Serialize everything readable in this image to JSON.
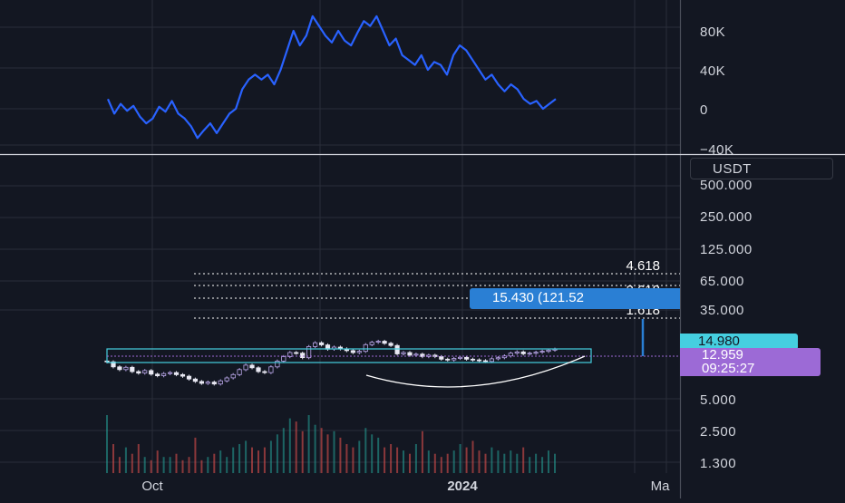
{
  "chart_data": [
    {
      "type": "line",
      "pane": "indicator",
      "color": "#2962ff",
      "y_ticks": [
        "80K",
        "40K",
        "0",
        "−40K"
      ],
      "ylim": [
        -40000,
        100000
      ],
      "series": [
        {
          "values": [
            10000,
            -5000,
            5000,
            -2000,
            3000,
            -8000,
            -15000,
            -10000,
            2000,
            -3000,
            8000,
            -5000,
            -10000,
            -18000,
            -30000,
            -22000,
            -15000,
            -25000,
            -15000,
            -5000,
            0,
            20000,
            30000,
            35000,
            30000,
            35000,
            25000,
            40000,
            60000,
            80000,
            65000,
            75000,
            95000,
            85000,
            75000,
            68000,
            80000,
            70000,
            65000,
            78000,
            90000,
            85000,
            95000,
            80000,
            65000,
            72000,
            55000,
            50000,
            45000,
            55000,
            40000,
            48000,
            45000,
            35000,
            55000,
            65000,
            60000,
            50000,
            40000,
            30000,
            35000,
            25000,
            18000,
            25000,
            20000,
            10000,
            5000,
            8000,
            0,
            5000,
            10000
          ]
        }
      ]
    },
    {
      "type": "candlestick",
      "pane": "price",
      "scale": "log",
      "currency": "USDT",
      "y_ticks": [
        "500.000",
        "250.000",
        "125.000",
        "65.000",
        "35.000",
        "14.980",
        "5.000",
        "2.500",
        "1.300"
      ],
      "x_ticks": [
        {
          "label": "Oct",
          "bold": false
        },
        {
          "label": "2024",
          "bold": true
        },
        {
          "label": "Ma",
          "bold": false
        }
      ],
      "close": [
        11.2,
        10.0,
        9.4,
        9.9,
        9.0,
        8.7,
        9.2,
        8.5,
        8.2,
        8.6,
        8.8,
        8.4,
        8.1,
        7.6,
        7.2,
        6.9,
        7.1,
        6.8,
        7.3,
        7.8,
        8.4,
        9.4,
        10.4,
        9.8,
        9.0,
        8.8,
        10.0,
        11.4,
        12.6,
        13.8,
        13.6,
        12.3,
        15.8,
        17.2,
        16.4,
        14.9,
        15.6,
        15.0,
        14.4,
        13.8,
        14.2,
        16.5,
        17.4,
        17.8,
        17.0,
        16.2,
        13.4,
        13.8,
        13.0,
        13.3,
        12.6,
        13.0,
        12.6,
        11.9,
        11.7,
        12.1,
        12.4,
        11.9,
        11.7,
        11.5,
        11.3,
        12.0,
        12.3,
        12.8,
        13.6,
        14.0,
        13.4,
        13.6,
        13.9,
        14.2,
        14.6,
        14.9
      ],
      "volume": [
        18,
        9,
        5,
        8,
        6,
        9,
        5,
        4,
        7,
        5,
        5,
        6,
        4,
        5,
        11,
        4,
        5,
        6,
        7,
        5,
        8,
        9,
        10,
        8,
        7,
        8,
        10,
        12,
        14,
        17,
        16,
        13,
        18,
        15,
        14,
        12,
        13,
        11,
        9,
        8,
        10,
        14,
        12,
        11,
        8,
        9,
        8,
        7,
        6,
        9,
        13,
        7,
        6,
        5,
        6,
        7,
        9,
        8,
        10,
        7,
        6,
        8,
        7,
        6,
        7,
        6,
        8,
        5,
        6,
        5,
        7,
        6
      ],
      "fib_levels": [
        {
          "label": "4.618",
          "price": 65.0
        },
        {
          "label": "2.618",
          "price": 39.0
        },
        {
          "label": "1.618",
          "price": 26.0
        }
      ],
      "fib_tag": "15.430 (121.52",
      "current_price_tag": "14.980",
      "last_price": "12.959",
      "countdown": "09:25:27"
    }
  ]
}
